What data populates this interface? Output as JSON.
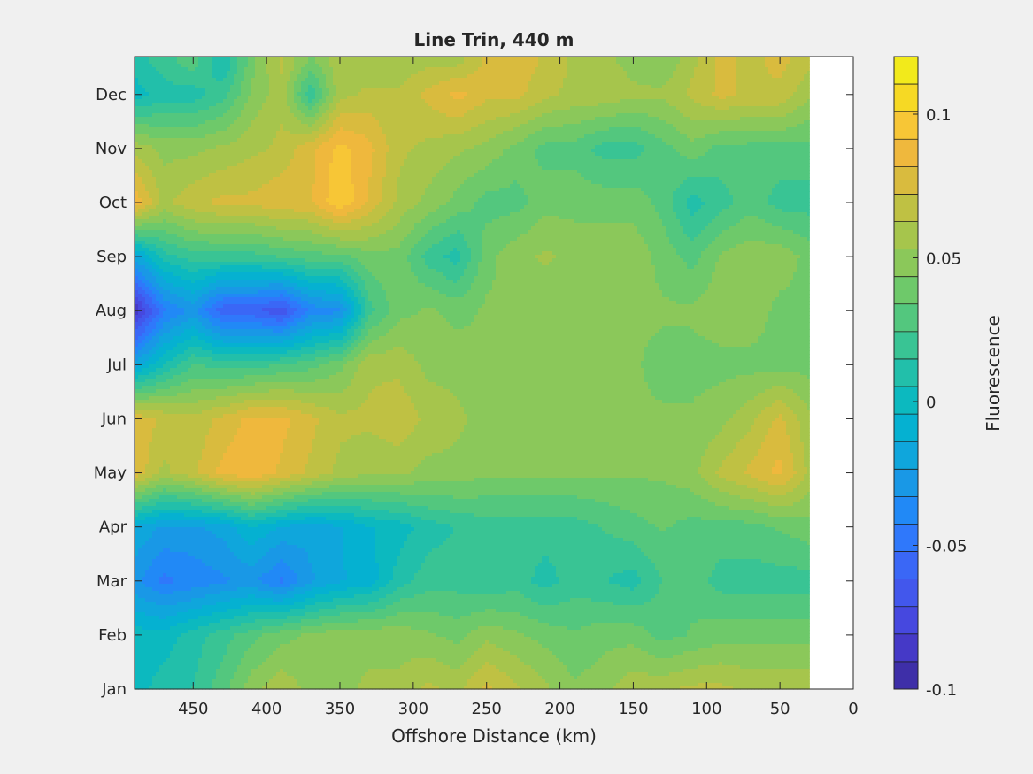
{
  "chart_data": {
    "type": "heatmap",
    "title": "Line Trin, 440 m",
    "xlabel": "Offshore Distance (km)",
    "ylabel": "",
    "xlim": [
      490,
      0
    ],
    "x_reversed": true,
    "x_ticks": [
      450,
      400,
      350,
      300,
      250,
      200,
      150,
      100,
      50,
      0
    ],
    "x_tick_labels": [
      "450",
      "400",
      "350",
      "300",
      "250",
      "200",
      "150",
      "100",
      "50",
      "0"
    ],
    "y_categories": [
      "Jan",
      "Feb",
      "Mar",
      "Apr",
      "May",
      "Jun",
      "Jul",
      "Aug",
      "Sep",
      "Oct",
      "Nov",
      "Dec"
    ],
    "data_extent_km": [
      490,
      30
    ],
    "colorbar": {
      "label": "Fluorescence",
      "range": [
        -0.1,
        0.12
      ],
      "levels": 22,
      "ticks": [
        -0.1,
        -0.05,
        0,
        0.05,
        0.1
      ],
      "tick_labels": [
        "-0.1",
        "-0.05",
        "0",
        "0.05",
        "0.1"
      ],
      "colors": [
        "#3e2fa8",
        "#4539c7",
        "#4648df",
        "#4257ec",
        "#3a67f6",
        "#2f78fb",
        "#2189f6",
        "#1998e6",
        "#0fa6dc",
        "#05b1d1",
        "#0cb9bf",
        "#22bfaa",
        "#39c494",
        "#53c77e",
        "#6ec96a",
        "#8bc85a",
        "#a6c54c",
        "#bfc143",
        "#d9bb3e",
        "#efb83d",
        "#f7c636",
        "#f6d924",
        "#f2ea1b"
      ]
    },
    "grid": false,
    "colors": {
      "background": "#f0f0f0",
      "axes_fill": "#ffffff"
    },
    "distance_km": [
      490,
      470,
      450,
      430,
      410,
      390,
      370,
      350,
      330,
      310,
      290,
      270,
      250,
      230,
      210,
      190,
      170,
      150,
      130,
      110,
      90,
      70,
      50,
      30
    ],
    "month_positions": [
      1,
      2,
      3,
      4,
      5,
      6,
      7,
      8,
      9,
      10,
      11,
      12,
      12.6
    ],
    "values": [
      [
        0.0,
        0.01,
        0.015,
        0.03,
        0.05,
        0.06,
        0.05,
        0.05,
        0.055,
        0.055,
        0.065,
        0.06,
        0.075,
        0.065,
        0.055,
        0.045,
        0.05,
        0.06,
        0.06,
        0.065,
        0.065,
        0.06,
        0.06,
        0.06
      ],
      [
        0.0,
        0.0,
        0.01,
        0.02,
        0.03,
        0.04,
        0.045,
        0.05,
        0.05,
        0.05,
        0.045,
        0.04,
        0.05,
        0.045,
        0.04,
        0.035,
        0.04,
        0.04,
        0.03,
        0.035,
        0.04,
        0.04,
        0.04,
        0.04
      ],
      [
        -0.03,
        -0.045,
        -0.04,
        -0.035,
        -0.03,
        -0.045,
        -0.025,
        -0.015,
        -0.01,
        0.01,
        0.02,
        0.02,
        0.015,
        0.02,
        0.01,
        0.02,
        0.015,
        0.01,
        0.025,
        0.03,
        0.02,
        0.02,
        0.02,
        0.02
      ],
      [
        -0.015,
        -0.025,
        -0.025,
        -0.02,
        -0.005,
        -0.015,
        -0.02,
        -0.015,
        -0.005,
        0.0,
        0.01,
        0.015,
        0.02,
        0.02,
        0.02,
        0.02,
        0.025,
        0.03,
        0.035,
        0.03,
        0.03,
        0.03,
        0.035,
        0.04
      ],
      [
        0.08,
        0.06,
        0.07,
        0.085,
        0.09,
        0.08,
        0.07,
        0.06,
        0.055,
        0.055,
        0.05,
        0.05,
        0.045,
        0.045,
        0.045,
        0.045,
        0.045,
        0.045,
        0.045,
        0.05,
        0.065,
        0.075,
        0.085,
        0.06
      ],
      [
        0.08,
        0.07,
        0.065,
        0.075,
        0.085,
        0.085,
        0.075,
        0.065,
        0.065,
        0.07,
        0.06,
        0.055,
        0.05,
        0.05,
        0.045,
        0.045,
        0.045,
        0.045,
        0.045,
        0.045,
        0.05,
        0.06,
        0.075,
        0.055
      ],
      [
        -0.02,
        0.005,
        0.025,
        0.02,
        0.02,
        0.025,
        0.03,
        0.04,
        0.06,
        0.06,
        0.05,
        0.05,
        0.045,
        0.045,
        0.045,
        0.045,
        0.045,
        0.045,
        0.04,
        0.04,
        0.04,
        0.04,
        0.04,
        0.04
      ],
      [
        -0.09,
        -0.045,
        -0.03,
        -0.06,
        -0.06,
        -0.07,
        -0.04,
        -0.035,
        0.02,
        0.04,
        0.045,
        0.04,
        0.045,
        0.045,
        0.045,
        0.045,
        0.045,
        0.045,
        0.045,
        0.045,
        0.05,
        0.05,
        0.04,
        0.04
      ],
      [
        -0.02,
        0.01,
        0.02,
        0.02,
        0.02,
        0.025,
        0.03,
        0.03,
        0.04,
        0.04,
        0.02,
        0.01,
        0.04,
        0.05,
        0.055,
        0.05,
        0.05,
        0.05,
        0.04,
        0.03,
        0.045,
        0.05,
        0.05,
        0.04
      ],
      [
        0.09,
        0.06,
        0.07,
        0.075,
        0.075,
        0.08,
        0.08,
        0.1,
        0.08,
        0.06,
        0.05,
        0.04,
        0.03,
        0.03,
        0.04,
        0.04,
        0.04,
        0.04,
        0.03,
        0.01,
        0.02,
        0.03,
        0.02,
        0.02
      ],
      [
        0.06,
        0.05,
        0.05,
        0.055,
        0.06,
        0.065,
        0.08,
        0.095,
        0.085,
        0.065,
        0.06,
        0.055,
        0.05,
        0.04,
        0.03,
        0.03,
        0.02,
        0.02,
        0.03,
        0.04,
        0.03,
        0.03,
        0.03,
        0.03
      ],
      [
        0.0,
        0.01,
        0.01,
        0.02,
        0.045,
        0.06,
        0.015,
        0.06,
        0.065,
        0.065,
        0.075,
        0.085,
        0.075,
        0.075,
        0.065,
        0.06,
        0.06,
        0.055,
        0.055,
        0.065,
        0.075,
        0.07,
        0.07,
        0.055
      ],
      [
        0.01,
        0.02,
        0.03,
        0.005,
        0.04,
        0.065,
        0.04,
        0.06,
        0.055,
        0.055,
        0.06,
        0.06,
        0.075,
        0.08,
        0.07,
        0.06,
        0.055,
        0.05,
        0.045,
        0.06,
        0.075,
        0.07,
        0.075,
        0.065
      ]
    ]
  }
}
